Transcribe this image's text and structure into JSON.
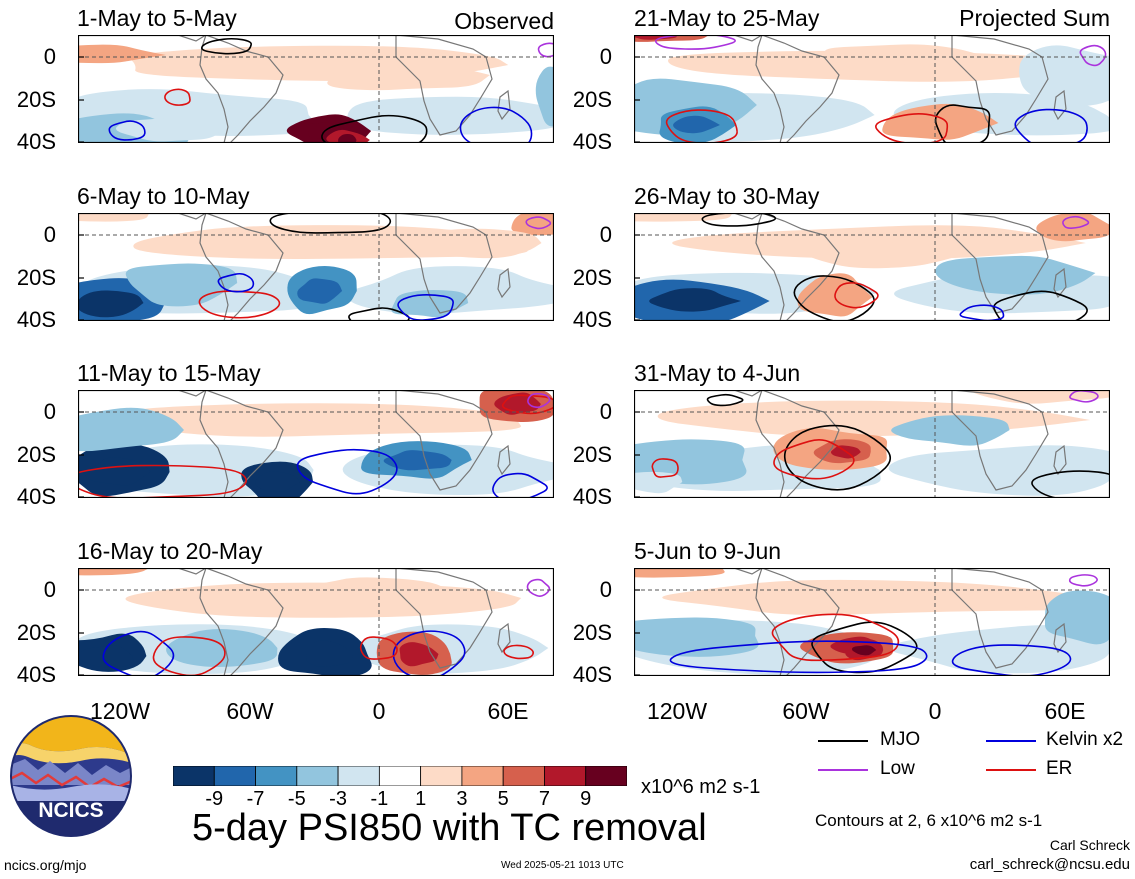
{
  "panels_left": [
    {
      "title": "1-May to 5-May",
      "tag": "Observed"
    },
    {
      "title": "6-May to 10-May",
      "tag": ""
    },
    {
      "title": "11-May to 15-May",
      "tag": ""
    },
    {
      "title": "16-May to 20-May",
      "tag": ""
    }
  ],
  "panels_right": [
    {
      "title": "21-May to 25-May",
      "tag": "Projected Sum"
    },
    {
      "title": "26-May to 30-May",
      "tag": ""
    },
    {
      "title": "31-May to 4-Jun",
      "tag": ""
    },
    {
      "title": "5-Jun to 9-Jun",
      "tag": ""
    }
  ],
  "y_ticks": [
    "0",
    "20S",
    "40S"
  ],
  "x_ticks": [
    "120W",
    "60W",
    "0",
    "60E"
  ],
  "legend": {
    "mjo": "MJO",
    "kelvin": "Kelvin x2",
    "low": "Low",
    "er": "ER",
    "colors": {
      "mjo": "#000000",
      "kelvin": "#0000dd",
      "low": "#aa33dd",
      "er": "#dd1111"
    }
  },
  "colorbar": {
    "levels": [
      "-9",
      "-7",
      "-5",
      "-3",
      "-1",
      "1",
      "3",
      "5",
      "7",
      "9"
    ],
    "colors": [
      "#0b3468",
      "#2166ac",
      "#4393c3",
      "#92c5de",
      "#d1e5f0",
      "#ffffff",
      "#fddbc7",
      "#f4a582",
      "#d6604d",
      "#b2182b",
      "#67001f"
    ],
    "units": "x10^6 m2 s-1"
  },
  "main_title": "5-day PSI850 with TC removal",
  "contour_note": "Contours at 2, 6 x10^6 m2 s-1",
  "author": "Carl Schreck",
  "email": "carl_schreck@ncsu.edu",
  "website": "ncics.org/mjo",
  "timestamp": "Wed 2025-05-21 1013 UTC",
  "logo_text": "NCICS"
}
